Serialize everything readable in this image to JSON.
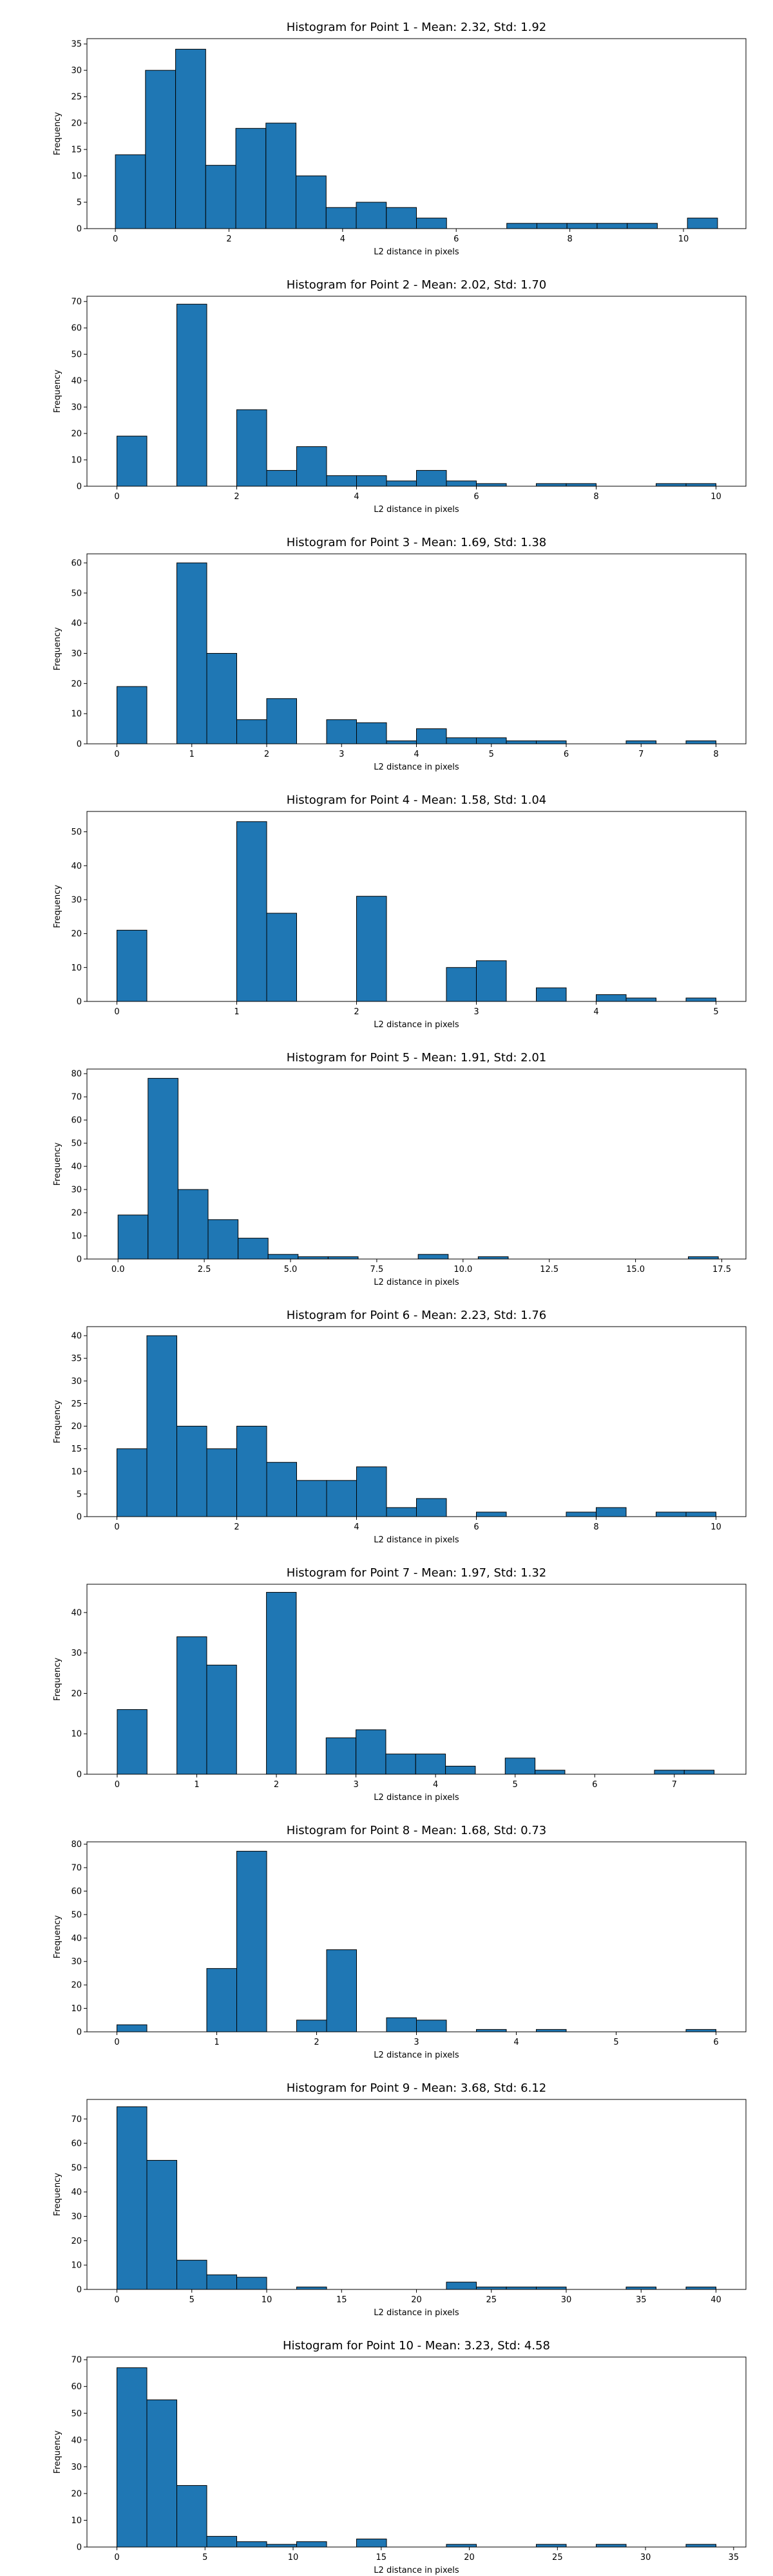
{
  "chart_data": [
    {
      "type": "bar",
      "title": "Histogram for Point 1 - Mean: 2.32, Std: 1.92",
      "xlabel": "L2 distance in pixels",
      "ylabel": "Frequency",
      "xlim": [
        -0.5,
        11.1
      ],
      "ylim": [
        0,
        36
      ],
      "xticks": [
        0,
        2,
        4,
        6,
        8,
        10
      ],
      "yticks": [
        0,
        5,
        10,
        15,
        20,
        25,
        30,
        35
      ],
      "bin_edges": [
        0,
        0.53,
        1.06,
        1.59,
        2.12,
        2.65,
        3.18,
        3.71,
        4.24,
        4.77,
        5.3,
        5.83,
        6.36,
        6.89,
        7.42,
        7.95,
        8.48,
        9.01,
        9.54,
        10.07,
        10.6
      ],
      "values": [
        14,
        30,
        34,
        12,
        19,
        20,
        10,
        4,
        5,
        4,
        2,
        0,
        0,
        1,
        1,
        1,
        1,
        1,
        0,
        2
      ]
    },
    {
      "type": "bar",
      "title": "Histogram for Point 2 - Mean: 2.02, Std: 1.70",
      "xlabel": "L2 distance in pixels",
      "ylabel": "Frequency",
      "xlim": [
        -0.5,
        10.5
      ],
      "ylim": [
        0,
        72
      ],
      "xticks": [
        0,
        2,
        4,
        6,
        8,
        10
      ],
      "yticks": [
        0,
        10,
        20,
        30,
        40,
        50,
        60,
        70
      ],
      "bin_edges": [
        0,
        0.5,
        1,
        1.5,
        2,
        2.5,
        3,
        3.5,
        4,
        4.5,
        5,
        5.5,
        6,
        6.5,
        7,
        7.5,
        8,
        8.5,
        9,
        9.5,
        10
      ],
      "values": [
        19,
        0,
        69,
        0,
        29,
        6,
        15,
        4,
        4,
        2,
        6,
        2,
        1,
        0,
        1,
        1,
        0,
        0,
        1,
        1
      ]
    },
    {
      "type": "bar",
      "title": "Histogram for Point 3 - Mean: 1.69, Std: 1.38",
      "xlabel": "L2 distance in pixels",
      "ylabel": "Frequency",
      "xlim": [
        -0.4,
        8.4
      ],
      "ylim": [
        0,
        63
      ],
      "xticks": [
        0,
        1,
        2,
        3,
        4,
        5,
        6,
        7,
        8
      ],
      "yticks": [
        0,
        10,
        20,
        30,
        40,
        50,
        60
      ],
      "bin_edges": [
        0,
        0.4,
        0.8,
        1.2,
        1.6,
        2,
        2.4,
        2.8,
        3.2,
        3.6,
        4,
        4.4,
        4.8,
        5.2,
        5.6,
        6,
        6.4,
        6.8,
        7.2,
        7.6,
        8
      ],
      "values": [
        19,
        0,
        60,
        30,
        8,
        15,
        0,
        8,
        7,
        1,
        5,
        2,
        2,
        1,
        1,
        0,
        0,
        1,
        0,
        1
      ]
    },
    {
      "type": "bar",
      "title": "Histogram for Point 4 - Mean: 1.58, Std: 1.04",
      "xlabel": "L2 distance in pixels",
      "ylabel": "Frequency",
      "xlim": [
        -0.25,
        5.25
      ],
      "ylim": [
        0,
        56
      ],
      "xticks": [
        0,
        1,
        2,
        3,
        4,
        5
      ],
      "yticks": [
        0,
        10,
        20,
        30,
        40,
        50
      ],
      "bin_edges": [
        0,
        0.25,
        0.5,
        0.75,
        1,
        1.25,
        1.5,
        1.75,
        2,
        2.25,
        2.5,
        2.75,
        3,
        3.25,
        3.5,
        3.75,
        4,
        4.25,
        4.5,
        4.75,
        5
      ],
      "values": [
        21,
        0,
        0,
        0,
        53,
        26,
        0,
        0,
        31,
        0,
        0,
        10,
        12,
        0,
        4,
        0,
        2,
        1,
        0,
        1
      ]
    },
    {
      "type": "bar",
      "title": "Histogram for Point 5 - Mean: 1.91, Std: 2.01",
      "xlabel": "L2 distance in pixels",
      "ylabel": "Frequency",
      "xlim": [
        -0.9,
        18.2
      ],
      "ylim": [
        0,
        82
      ],
      "xticks": [
        0.0,
        2.5,
        5.0,
        7.5,
        10.0,
        12.5,
        15.0,
        17.5
      ],
      "xtick_labels": [
        "0.0",
        "2.5",
        "5.0",
        "7.5",
        "10.0",
        "12.5",
        "15.0",
        "17.5"
      ],
      "yticks": [
        0,
        10,
        20,
        30,
        40,
        50,
        60,
        70,
        80
      ],
      "bin_edges": [
        0,
        0.87,
        1.74,
        2.61,
        3.48,
        4.35,
        5.22,
        6.09,
        6.96,
        7.83,
        8.7,
        9.57,
        10.44,
        11.31,
        12.18,
        13.05,
        13.92,
        14.79,
        15.66,
        16.53,
        17.4
      ],
      "values": [
        19,
        78,
        30,
        17,
        9,
        2,
        1,
        1,
        0,
        0,
        2,
        0,
        1,
        0,
        0,
        0,
        0,
        0,
        0,
        1
      ]
    },
    {
      "type": "bar",
      "title": "Histogram for Point 6 - Mean: 2.23, Std: 1.76",
      "xlabel": "L2 distance in pixels",
      "ylabel": "Frequency",
      "xlim": [
        -0.5,
        10.5
      ],
      "ylim": [
        0,
        42
      ],
      "xticks": [
        0,
        2,
        4,
        6,
        8,
        10
      ],
      "yticks": [
        0,
        5,
        10,
        15,
        20,
        25,
        30,
        35,
        40
      ],
      "bin_edges": [
        0,
        0.5,
        1,
        1.5,
        2,
        2.5,
        3,
        3.5,
        4,
        4.5,
        5,
        5.5,
        6,
        6.5,
        7,
        7.5,
        8,
        8.5,
        9,
        9.5,
        10
      ],
      "values": [
        15,
        40,
        20,
        15,
        20,
        12,
        8,
        8,
        11,
        2,
        4,
        0,
        1,
        0,
        0,
        1,
        2,
        0,
        1,
        1
      ]
    },
    {
      "type": "bar",
      "title": "Histogram for Point 7 - Mean: 1.97, Std: 1.32",
      "xlabel": "L2 distance in pixels",
      "ylabel": "Frequency",
      "xlim": [
        -0.38,
        7.9
      ],
      "ylim": [
        0,
        47
      ],
      "xticks": [
        0,
        1,
        2,
        3,
        4,
        5,
        6,
        7
      ],
      "yticks": [
        0,
        10,
        20,
        30,
        40
      ],
      "bin_edges": [
        0,
        0.375,
        0.75,
        1.125,
        1.5,
        1.875,
        2.25,
        2.625,
        3,
        3.375,
        3.75,
        4.125,
        4.5,
        4.875,
        5.25,
        5.625,
        6,
        6.375,
        6.75,
        7.125,
        7.5
      ],
      "values": [
        16,
        0,
        34,
        27,
        0,
        45,
        0,
        9,
        11,
        5,
        5,
        2,
        0,
        4,
        1,
        0,
        0,
        0,
        1,
        1
      ]
    },
    {
      "type": "bar",
      "title": "Histogram for Point 8 - Mean: 1.68, Std: 0.73",
      "xlabel": "L2 distance in pixels",
      "ylabel": "Frequency",
      "xlim": [
        -0.3,
        6.3
      ],
      "ylim": [
        0,
        81
      ],
      "xticks": [
        0,
        1,
        2,
        3,
        4,
        5,
        6
      ],
      "yticks": [
        0,
        10,
        20,
        30,
        40,
        50,
        60,
        70,
        80
      ],
      "bin_edges": [
        0,
        0.3,
        0.6,
        0.9,
        1.2,
        1.5,
        1.8,
        2.1,
        2.4,
        2.7,
        3,
        3.3,
        3.6,
        3.9,
        4.2,
        4.5,
        4.8,
        5.1,
        5.4,
        5.7,
        6
      ],
      "values": [
        3,
        0,
        0,
        27,
        77,
        0,
        5,
        35,
        0,
        6,
        5,
        0,
        1,
        0,
        1,
        0,
        0,
        0,
        0,
        1
      ]
    },
    {
      "type": "bar",
      "title": "Histogram for Point 9 - Mean: 3.68, Std: 6.12",
      "xlabel": "L2 distance in pixels",
      "ylabel": "Frequency",
      "xlim": [
        -2,
        42
      ],
      "ylim": [
        0,
        78
      ],
      "xticks": [
        0,
        5,
        10,
        15,
        20,
        25,
        30,
        35,
        40
      ],
      "yticks": [
        0,
        10,
        20,
        30,
        40,
        50,
        60,
        70
      ],
      "bin_edges": [
        0,
        2,
        4,
        6,
        8,
        10,
        12,
        14,
        16,
        18,
        20,
        22,
        24,
        26,
        28,
        30,
        32,
        34,
        36,
        38,
        40
      ],
      "values": [
        75,
        53,
        12,
        6,
        5,
        0,
        1,
        0,
        0,
        0,
        0,
        3,
        1,
        1,
        1,
        0,
        0,
        1,
        0,
        1
      ]
    },
    {
      "type": "bar",
      "title": "Histogram for Point 10 - Mean: 3.23, Std: 4.58",
      "xlabel": "L2 distance in pixels",
      "ylabel": "Frequency",
      "xlim": [
        -1.7,
        35.7
      ],
      "ylim": [
        0,
        71
      ],
      "xticks": [
        0,
        5,
        10,
        15,
        20,
        25,
        30,
        35
      ],
      "yticks": [
        0,
        10,
        20,
        30,
        40,
        50,
        60,
        70
      ],
      "bin_edges": [
        0,
        1.7,
        3.4,
        5.1,
        6.8,
        8.5,
        10.2,
        11.9,
        13.6,
        15.3,
        17,
        18.7,
        20.4,
        22.1,
        23.8,
        25.5,
        27.2,
        28.9,
        30.6,
        32.3,
        34
      ],
      "values": [
        67,
        55,
        23,
        4,
        2,
        1,
        2,
        0,
        3,
        0,
        0,
        1,
        0,
        0,
        1,
        0,
        1,
        0,
        0,
        1
      ]
    }
  ],
  "colors": {
    "bar_fill": "#1f77b4",
    "bar_edge": "#000000"
  }
}
